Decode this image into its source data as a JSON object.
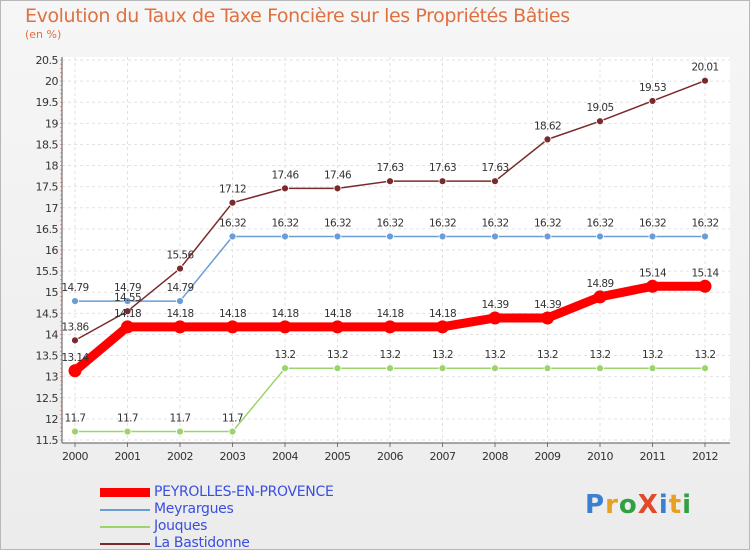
{
  "chart_data": {
    "type": "line",
    "title": "Evolution du Taux de Taxe Foncière sur les Propriétés Bâties",
    "ylabel": "(en %)",
    "ylim": [
      11.5,
      20.5
    ],
    "yticks": [
      "11.5",
      "12",
      "12.5",
      "13",
      "13.5",
      "14",
      "14.5",
      "15",
      "15.5",
      "16",
      "16.5",
      "17",
      "17.5",
      "18",
      "18.5",
      "19",
      "19.5",
      "20",
      "20.5"
    ],
    "categories": [
      "2000",
      "2001",
      "2002",
      "2003",
      "2004",
      "2005",
      "2006",
      "2007",
      "2008",
      "2009",
      "2010",
      "2011",
      "2012"
    ],
    "series": [
      {
        "name": "PEYROLLES-EN-PROVENCE",
        "color": "#ff0000",
        "values": [
          13.14,
          14.18,
          14.18,
          14.18,
          14.18,
          14.18,
          14.18,
          14.18,
          14.39,
          14.39,
          14.89,
          15.14,
          15.14
        ],
        "labels": [
          "13.14",
          "14.18",
          "14.18",
          "14.18",
          "14.18",
          "14.18",
          "14.18",
          "14.18",
          "14.39",
          "14.39",
          "14.89",
          "15.14",
          "15.14"
        ]
      },
      {
        "name": "Meyrargues",
        "color": "#6a9cd6",
        "values": [
          14.79,
          14.79,
          14.79,
          16.32,
          16.32,
          16.32,
          16.32,
          16.32,
          16.32,
          16.32,
          16.32,
          16.32,
          16.32
        ],
        "labels": [
          "14.79",
          "14.79",
          "14.79",
          "16.32",
          "16.32",
          "16.32",
          "16.32",
          "16.32",
          "16.32",
          "16.32",
          "16.32",
          "16.32",
          "16.32"
        ]
      },
      {
        "name": "Jouques",
        "color": "#9ad46a",
        "values": [
          11.7,
          11.7,
          11.7,
          11.7,
          13.2,
          13.2,
          13.2,
          13.2,
          13.2,
          13.2,
          13.2,
          13.2,
          13.2
        ],
        "labels": [
          "11.7",
          "11.7",
          "11.7",
          "11.7",
          "13.2",
          "13.2",
          "13.2",
          "13.2",
          "13.2",
          "13.2",
          "13.2",
          "13.2",
          "13.2"
        ]
      },
      {
        "name": "La Bastidonne",
        "color": "#7a2a2a",
        "values": [
          13.86,
          14.55,
          15.56,
          17.12,
          17.46,
          17.46,
          17.63,
          17.63,
          17.63,
          18.62,
          19.05,
          19.53,
          20.01
        ],
        "labels": [
          "13.86",
          "14.55",
          "15.56",
          "17.12",
          "17.46",
          "17.46",
          "17.63",
          "17.63",
          "17.63",
          "18.62",
          "19.05",
          "19.53",
          "20.01"
        ]
      }
    ]
  },
  "brand": {
    "logo_text": "ProXiti",
    "letter_colors": [
      "#3a7fd0",
      "#e8a020",
      "#30a040",
      "#e04a2a",
      "#3a7fd0",
      "#e8a020",
      "#30a040"
    ]
  }
}
